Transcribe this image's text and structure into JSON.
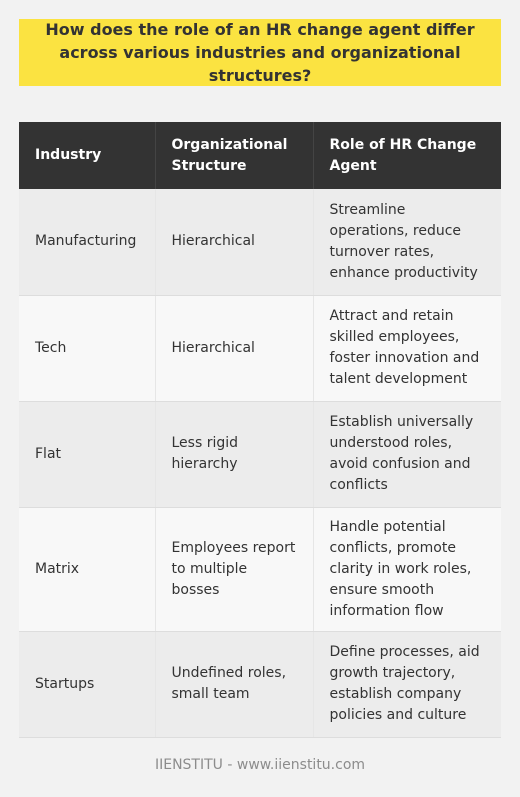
{
  "title": "How does the role of an HR change agent differ across various industries and organizational structures?",
  "table": {
    "headers": [
      "Industry",
      "Organizational Structure",
      "Role of HR Change Agent"
    ],
    "rows": [
      [
        "Manufacturing",
        "Hierarchical",
        "Streamline operations, reduce turnover rates, enhance productivity"
      ],
      [
        "Tech",
        "Hierarchical",
        "Attract and retain skilled employees, foster innovation and talent development"
      ],
      [
        "Flat",
        "Less rigid hierarchy",
        "Establish universally understood roles, avoid confusion and conflicts"
      ],
      [
        "Matrix",
        "Employees report to multiple bosses",
        "Handle potential conflicts, promote clarity in work roles, ensure smooth information flow"
      ],
      [
        "Startups",
        "Undefined roles, small team",
        "Define processes, aid growth trajectory, establish company policies and culture"
      ]
    ]
  },
  "footer": "IIENSTITU - www.iienstitu.com",
  "colors": {
    "title_background": "#fbe341",
    "header_background": "#333333",
    "row_odd": "#ececec",
    "row_even": "#f8f8f8",
    "footer_text": "#8c8c8c"
  }
}
